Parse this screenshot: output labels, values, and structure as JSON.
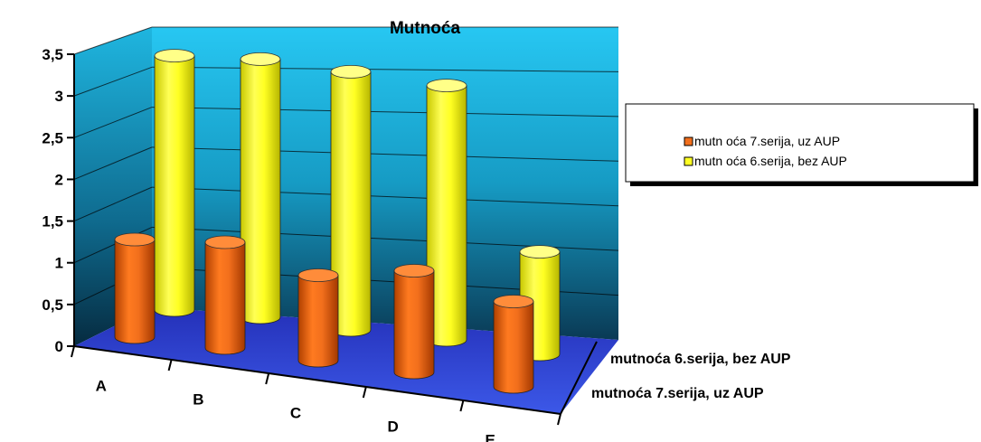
{
  "chart_data": {
    "type": "bar",
    "title": "Mutnoća",
    "categories": [
      "A",
      "B",
      "C",
      "D",
      "E"
    ],
    "series": [
      {
        "name": "mutnoća 7.serija, uz AUP",
        "color": "#f26f1c",
        "values": [
          1.2,
          1.3,
          1.05,
          1.25,
          1.05
        ]
      },
      {
        "name": "mutnoća 6.serija, bez AUP",
        "color": "#ffff22",
        "values": [
          3.35,
          3.4,
          3.4,
          3.35,
          1.35
        ]
      }
    ],
    "legend_labels": [
      "mutn oća 7.serija, uz AUP",
      "mutn oća 6.serija, bez AUP"
    ],
    "yticks": [
      "0",
      "0,5",
      "1",
      "1,5",
      "2",
      "2,5",
      "3",
      "3,5"
    ],
    "ylim": [
      0,
      3.5
    ],
    "grid": true,
    "legend_position": "right",
    "wall_color": "#1ec0ee",
    "floor_color": "#2232c8"
  }
}
